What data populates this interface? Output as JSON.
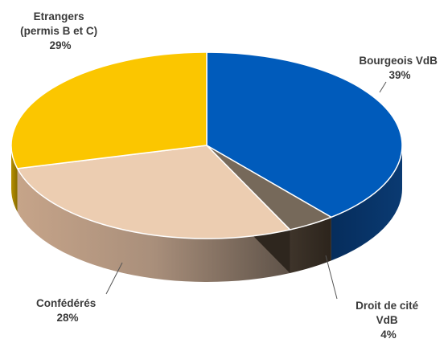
{
  "chart_data": {
    "type": "pie",
    "style": "3d",
    "slices": [
      {
        "name": "Bourgeois VdB",
        "value": 39,
        "label": "39%",
        "color": "#005bbb"
      },
      {
        "name": "Droit de cité VdB",
        "value": 4,
        "label": "4%",
        "color": "#76695a"
      },
      {
        "name": "Confédérés",
        "value": 28,
        "label": "28%",
        "color": "#eccdb1"
      },
      {
        "name": "Etrangers (permis B et C)",
        "value": 29,
        "label": "29%",
        "color": "#fbc600"
      }
    ],
    "labels": {
      "bourgeois": [
        "Bourgeois VdB",
        "39%"
      ],
      "droit": [
        "Droit de cité",
        "VdB",
        "4%"
      ],
      "confederes": [
        "Confédérés",
        "28%"
      ],
      "etrangers": [
        "Etrangers",
        "(permis B et C)",
        "29%"
      ]
    }
  }
}
